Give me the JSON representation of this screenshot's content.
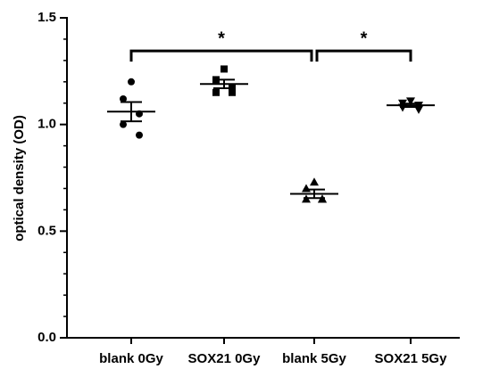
{
  "chart_data": {
    "type": "dot",
    "ylabel": "optical density (OD)",
    "ylim": [
      0,
      1.5
    ],
    "yticks": [
      {
        "value": 0,
        "label": "0.0"
      },
      0.5,
      {
        "value": 1,
        "label": "1.0"
      },
      1.5
    ],
    "yminorticks": [
      0.1,
      0.2,
      0.3,
      0.4,
      0.6,
      0.7,
      0.8,
      0.9,
      1.1,
      1.2,
      1.3,
      1.4
    ],
    "color": "#000000",
    "series": [
      {
        "name": "blank 0Gy",
        "marker": "circle",
        "values": [
          1.2,
          1.12,
          1.05,
          1.0,
          0.95
        ],
        "mean": 1.06,
        "sem": 0.045
      },
      {
        "name": "SOX21 0Gy",
        "marker": "square",
        "values": [
          1.26,
          1.21,
          1.17,
          1.15,
          1.15
        ],
        "mean": 1.19,
        "sem": 0.02
      },
      {
        "name": "blank 5Gy",
        "marker": "triangle",
        "values": [
          0.73,
          0.7,
          0.65,
          0.65,
          0.65
        ],
        "mean": 0.675,
        "sem": 0.02
      },
      {
        "name": "SOX21 5Gy",
        "marker": "triangle-down",
        "values": [
          1.11,
          1.1,
          1.09,
          1.08,
          1.07
        ],
        "mean": 1.09,
        "sem": 0.008
      }
    ],
    "annotations": [
      {
        "text": "*",
        "from": 0,
        "to": 2,
        "y": 1.345
      },
      {
        "text": "*",
        "from": 2,
        "to": 3,
        "y": 1.345
      }
    ]
  }
}
